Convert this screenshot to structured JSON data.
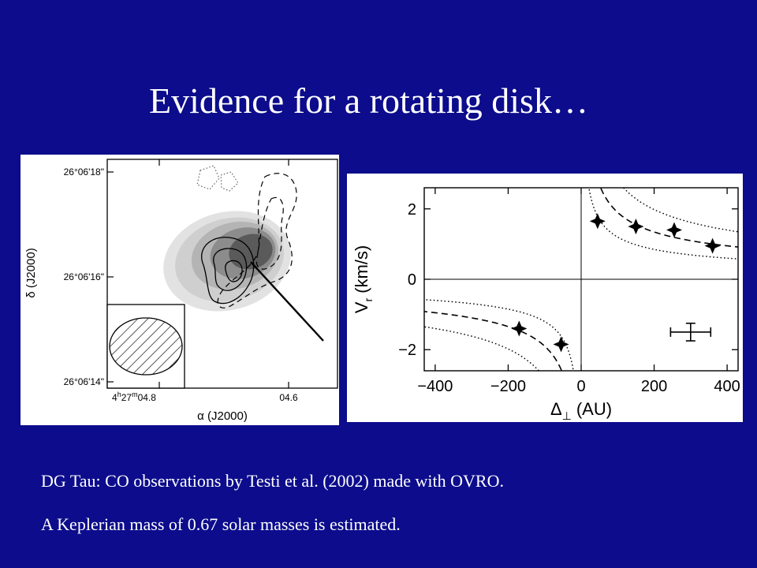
{
  "slide": {
    "title": "Evidence for a rotating disk…",
    "caption_line1": "DG Tau: CO observations by Testi et al. (2002) made with OVRO.",
    "caption_line2": "A Keplerian mass  of 0.67 solar masses  is estimated."
  },
  "colors": {
    "background": "#0c0c8c",
    "text": "#ffffff"
  },
  "chart_data": [
    {
      "type": "contour",
      "xlabel": "α (J2000)",
      "ylabel": "δ (J2000)",
      "x_ticks": [
        "4h27m04.8s",
        "04.6s"
      ],
      "x_tick_display": {
        "first": "4",
        "first_h": "h",
        "first_mid": "27",
        "first_m": "m",
        "first_tail": "04.8",
        "second": "04.6"
      },
      "y_ticks": [
        "26°06'18\"",
        "26°06'16\"",
        "26°06'14\""
      ],
      "features": [
        "grayscale continuum emission",
        "solid contours",
        "dashed contours",
        "dotted contours",
        "hatched synthesized beam (lower-left)",
        "straight line from peak toward lower-right"
      ]
    },
    {
      "type": "scatter",
      "xlabel": "Δ⊥ (AU)",
      "xlabel_parts": {
        "main": "Δ",
        "sub": "⊥",
        "unit": "(AU)"
      },
      "ylabel": "Vr (km/s)",
      "ylabel_parts": {
        "main": "V",
        "sub": "r",
        "unit": "(km/s)"
      },
      "xlim": [
        -430,
        430
      ],
      "ylim": [
        -2.6,
        2.6
      ],
      "x_ticks": [
        -400,
        -200,
        0,
        200,
        400
      ],
      "x_tick_labels": [
        "−400",
        "−200",
        "0",
        "200",
        "400"
      ],
      "y_ticks": [
        -2,
        0,
        2
      ],
      "y_tick_labels": [
        "−2",
        "0",
        "2"
      ],
      "points": [
        {
          "x": -170,
          "y": -1.4
        },
        {
          "x": -55,
          "y": -1.85
        },
        {
          "x": 45,
          "y": 1.65
        },
        {
          "x": 150,
          "y": 1.5
        },
        {
          "x": 255,
          "y": 1.4
        },
        {
          "x": 360,
          "y": 0.95
        }
      ],
      "curves": [
        {
          "style": "dashed",
          "k": 19
        },
        {
          "style": "dotted",
          "k": 28
        },
        {
          "style": "dotted",
          "k": 12
        }
      ],
      "typical_error_bar": {
        "x": 300,
        "y": -1.5,
        "xerr": 55,
        "yerr": 0.25
      }
    }
  ]
}
